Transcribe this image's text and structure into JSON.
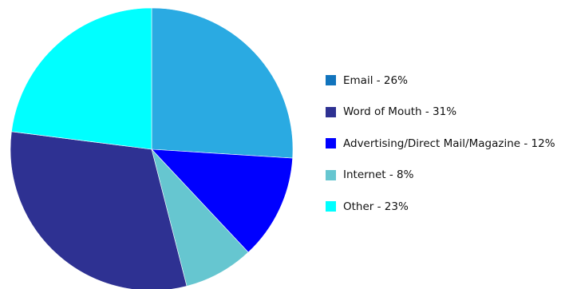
{
  "chart_data": {
    "type": "pie",
    "title": "",
    "start_angle_deg": 0,
    "direction": "clockwise",
    "slices": [
      {
        "label": "Email - 26%",
        "value": 26,
        "color": "#2AAAE2"
      },
      {
        "label": "Advertising/Direct Mail/Magazine - 12%",
        "value": 12,
        "color": "#0000FF"
      },
      {
        "label": "Internet - 8%",
        "value": 8,
        "color": "#66C6D0"
      },
      {
        "label": "Word of Mouth - 31%",
        "value": 31,
        "color": "#2E3192"
      },
      {
        "label": "Other - 23%",
        "value": 23,
        "color": "#00FFFF"
      }
    ],
    "legend": {
      "placement": "right",
      "entries": [
        {
          "label": "Email - 26%",
          "color": "#1174BD"
        },
        {
          "label": "Word of Mouth - 31%",
          "color": "#2E3192"
        },
        {
          "label": "Advertising/Direct Mail/Magazine - 12%",
          "color": "#0000FF"
        },
        {
          "label": "Internet - 8%",
          "color": "#66C6D0"
        },
        {
          "label": "Other - 23%",
          "color": "#00FFFF"
        }
      ]
    }
  }
}
